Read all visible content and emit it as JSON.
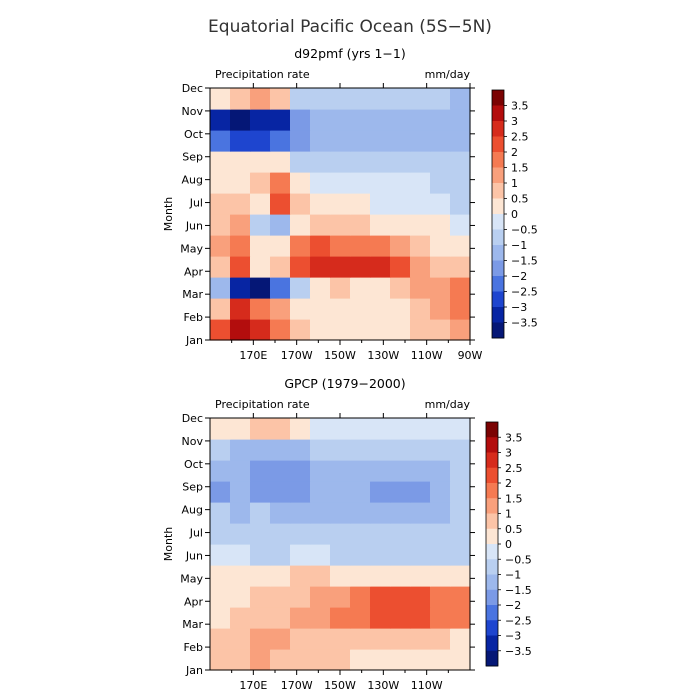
{
  "figure": {
    "title": "Equatorial Pacific Ocean (5S−5N)"
  },
  "chart_data": [
    {
      "type": "heatmap",
      "title": "d92pmf (yrs 1−1)",
      "field_label": "Precipitation rate",
      "units": "mm/day",
      "ylabel": "Month",
      "y_categories": [
        "Jan",
        "Feb",
        "Mar",
        "Apr",
        "May",
        "Jun",
        "Jul",
        "Aug",
        "Sep",
        "Oct",
        "Nov",
        "Dec"
      ],
      "x_tick_labels": [
        "170E",
        "170W",
        "150W",
        "130W",
        "110W",
        "90W"
      ],
      "x_tick_longitudes": [
        170,
        190,
        210,
        230,
        250,
        270
      ],
      "x_range": [
        150,
        270
      ],
      "colorbar_labels": [
        "3.5",
        "3",
        "2.5",
        "2",
        "1.5",
        "1",
        "0.5",
        "0",
        "−0.5",
        "−1",
        "−1.5",
        "−2",
        "−2.5",
        "−3",
        "−3.5"
      ],
      "colorbar_colors": [
        "#7b0303",
        "#b30d0d",
        "#d62b1c",
        "#ec4f30",
        "#f57a52",
        "#f9a07c",
        "#fcc4a7",
        "#fde6d4",
        "#d8e5f7",
        "#b9cff0",
        "#9db8ec",
        "#7b9ae6",
        "#4a74e0",
        "#1e45cf",
        "#0725a3",
        "#051776"
      ],
      "grid": [
        [
          2.5,
          3.5,
          3.0,
          2.0,
          1.0,
          0.5,
          0.4,
          0.3,
          0.3,
          0.5,
          0.8,
          1.0,
          1.2
        ],
        [
          1.0,
          3.0,
          2.0,
          1.5,
          0.5,
          0.3,
          0.3,
          0.3,
          0.3,
          0.5,
          0.8,
          1.5,
          1.8
        ],
        [
          -1.0,
          -3.0,
          -3.5,
          -2.0,
          -0.5,
          0.5,
          0.6,
          0.5,
          0.5,
          0.8,
          1.2,
          1.5,
          2.0
        ],
        [
          1.0,
          2.5,
          0.5,
          1.0,
          2.5,
          3.0,
          3.0,
          2.8,
          2.8,
          2.5,
          1.2,
          0.8,
          0.6
        ],
        [
          1.5,
          2.0,
          0.5,
          0.5,
          1.8,
          2.2,
          2.0,
          1.8,
          1.6,
          1.2,
          0.8,
          0.5,
          0.3
        ],
        [
          1.0,
          1.5,
          -0.5,
          -1.0,
          0.3,
          0.8,
          0.8,
          0.6,
          0.5,
          0.4,
          0.3,
          0.1,
          -0.3
        ],
        [
          1.0,
          1.0,
          0.5,
          2.5,
          0.8,
          0.3,
          0.2,
          0.1,
          0.0,
          0.0,
          0.0,
          -0.2,
          -0.5
        ],
        [
          0.5,
          0.5,
          1.0,
          2.0,
          0.5,
          -0.2,
          -0.3,
          -0.3,
          -0.3,
          -0.3,
          -0.3,
          -0.5,
          -0.8
        ],
        [
          0.5,
          0.3,
          0.3,
          0.2,
          -0.5,
          -0.8,
          -0.8,
          -0.8,
          -0.8,
          -0.8,
          -0.8,
          -0.8,
          -0.8
        ],
        [
          -2.0,
          -2.5,
          -2.5,
          -2.0,
          -1.5,
          -1.0,
          -1.0,
          -1.0,
          -1.0,
          -1.0,
          -1.0,
          -1.0,
          -1.2
        ],
        [
          -3.0,
          -3.5,
          -3.0,
          -3.0,
          -1.5,
          -1.0,
          -1.0,
          -1.0,
          -1.0,
          -1.0,
          -1.0,
          -1.0,
          -1.3
        ],
        [
          0.5,
          1.0,
          1.5,
          0.8,
          -0.5,
          -0.8,
          -0.8,
          -0.8,
          -0.8,
          -0.8,
          -0.8,
          -0.8,
          -1.0
        ]
      ]
    },
    {
      "type": "heatmap",
      "title": "GPCP (1979−2000)",
      "field_label": "Precipitation rate",
      "units": "mm/day",
      "ylabel": "Month",
      "y_categories": [
        "Jan",
        "Feb",
        "Mar",
        "Apr",
        "May",
        "Jun",
        "Jul",
        "Aug",
        "Sep",
        "Oct",
        "Nov",
        "Dec"
      ],
      "x_tick_labels": [
        "170E",
        "170W",
        "150W",
        "130W",
        "110W"
      ],
      "x_tick_longitudes": [
        170,
        190,
        210,
        230,
        250
      ],
      "x_range": [
        150,
        270
      ],
      "colorbar_labels": [
        "3.5",
        "3",
        "2.5",
        "2",
        "1.5",
        "1",
        "0.5",
        "0",
        "−0.5",
        "−1",
        "−1.5",
        "−2",
        "−2.5",
        "−3",
        "−3.5"
      ],
      "colorbar_colors": [
        "#7b0303",
        "#b30d0d",
        "#d62b1c",
        "#ec4f30",
        "#f57a52",
        "#f9a07c",
        "#fcc4a7",
        "#fde6d4",
        "#d8e5f7",
        "#b9cff0",
        "#9db8ec",
        "#7b9ae6",
        "#4a74e0",
        "#1e45cf",
        "#0725a3",
        "#051776"
      ],
      "grid": [
        [
          0.8,
          1.0,
          1.2,
          1.0,
          0.8,
          0.8,
          0.6,
          0.5,
          0.4,
          0.3,
          0.3,
          0.3,
          0.2
        ],
        [
          0.8,
          1.0,
          1.5,
          1.2,
          1.0,
          1.0,
          1.0,
          1.0,
          1.0,
          0.8,
          0.8,
          0.6,
          0.5
        ],
        [
          0.5,
          0.8,
          1.0,
          1.0,
          1.2,
          1.5,
          1.8,
          2.0,
          2.2,
          2.2,
          2.3,
          2.0,
          1.8
        ],
        [
          0.3,
          0.5,
          0.8,
          0.8,
          1.0,
          1.2,
          1.5,
          2.0,
          2.3,
          2.3,
          2.2,
          2.0,
          1.8
        ],
        [
          0.3,
          0.3,
          0.5,
          0.5,
          0.8,
          0.8,
          0.5,
          0.5,
          0.5,
          0.5,
          0.5,
          0.3,
          0.3
        ],
        [
          -0.3,
          -0.3,
          -0.5,
          -0.5,
          -0.3,
          -0.3,
          -0.5,
          -0.5,
          -0.5,
          -0.5,
          -0.5,
          -0.5,
          -0.5
        ],
        [
          -0.5,
          -0.5,
          -0.8,
          -0.8,
          -0.8,
          -0.8,
          -0.8,
          -0.8,
          -0.8,
          -0.8,
          -0.8,
          -0.8,
          -0.8
        ],
        [
          -0.8,
          -1.0,
          -0.8,
          -1.0,
          -1.0,
          -1.0,
          -1.0,
          -1.0,
          -1.2,
          -1.2,
          -1.0,
          -1.0,
          -0.8
        ],
        [
          -1.5,
          -1.0,
          -1.5,
          -1.8,
          -1.5,
          -1.2,
          -1.2,
          -1.3,
          -1.5,
          -1.5,
          -1.5,
          -1.2,
          -0.8
        ],
        [
          -1.0,
          -1.0,
          -1.5,
          -1.8,
          -1.5,
          -1.2,
          -1.0,
          -1.2,
          -1.3,
          -1.3,
          -1.2,
          -1.0,
          -0.8
        ],
        [
          -0.8,
          -1.0,
          -1.0,
          -1.0,
          -1.0,
          -0.8,
          -0.8,
          -0.8,
          -0.8,
          -0.8,
          -0.8,
          -0.8,
          -0.8
        ],
        [
          0.3,
          0.5,
          0.8,
          0.8,
          0.3,
          0.0,
          0.0,
          -0.3,
          -0.3,
          -0.3,
          -0.3,
          -0.3,
          -0.3
        ]
      ]
    }
  ]
}
